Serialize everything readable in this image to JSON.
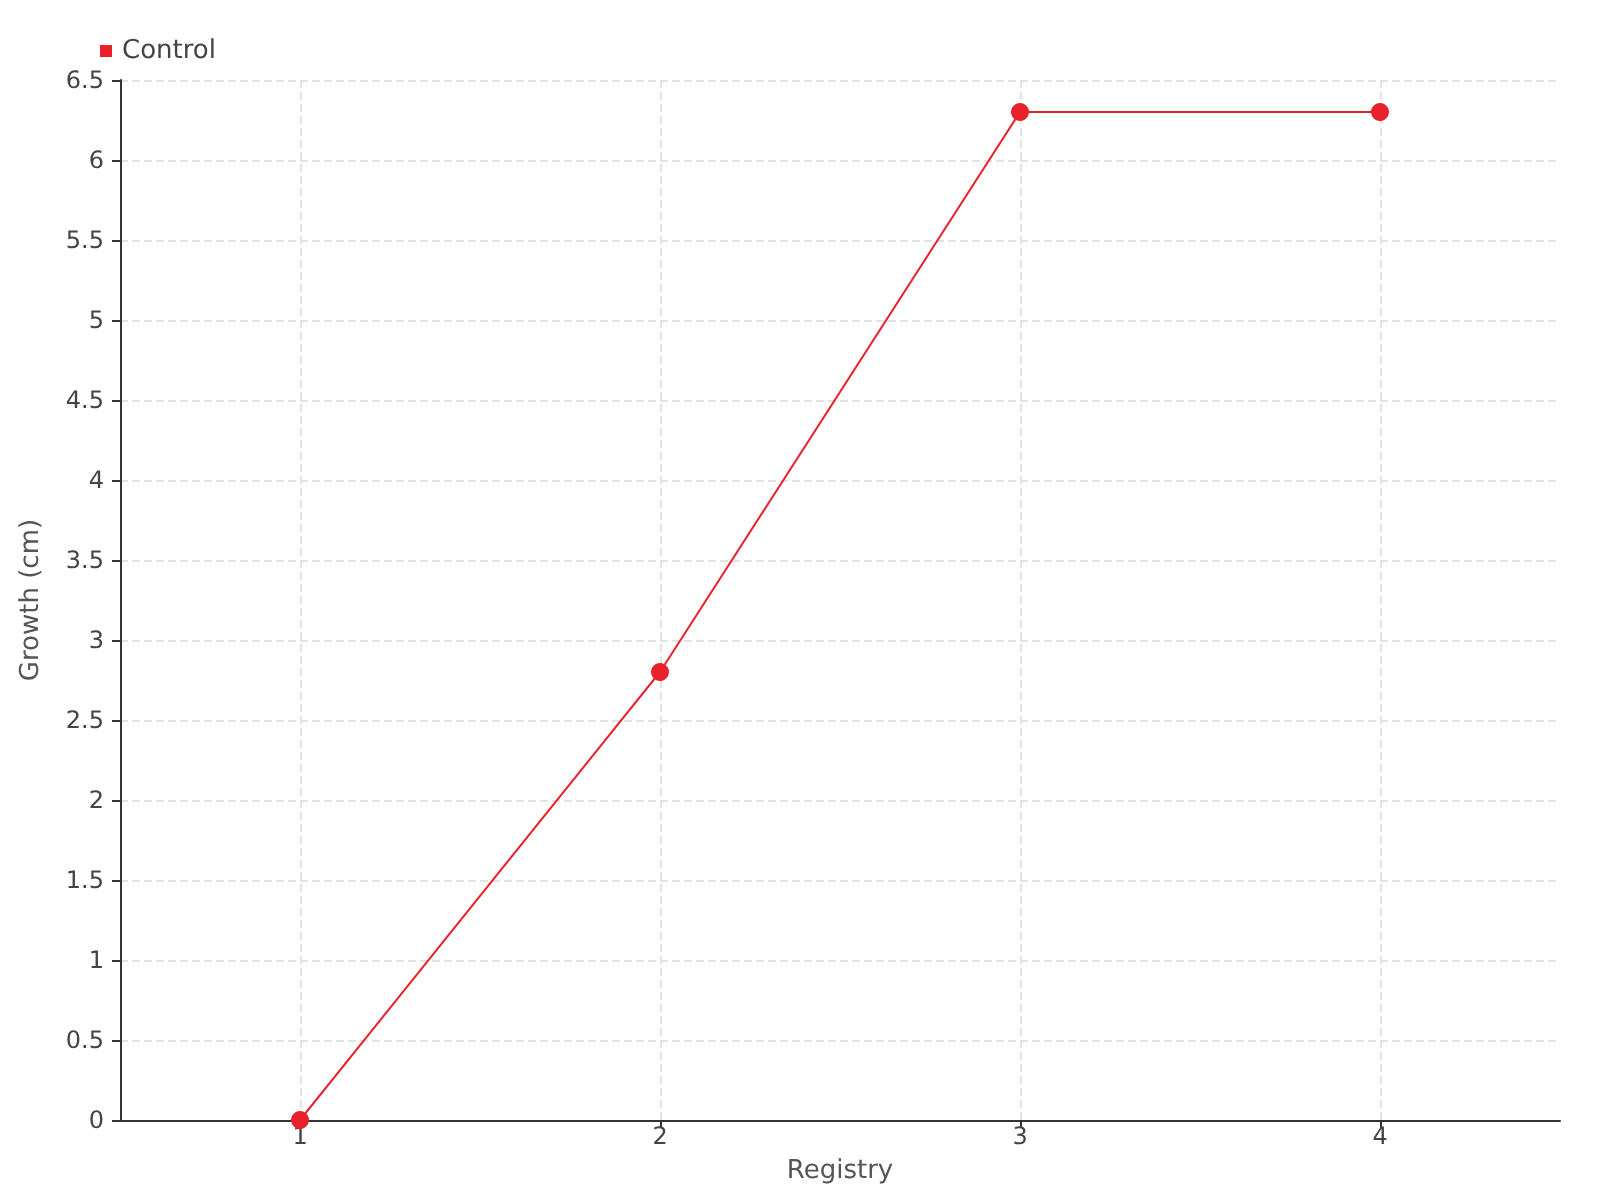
{
  "chart_data": {
    "type": "line",
    "xlabel": "Registry",
    "ylabel": "Growth (cm)",
    "x": [
      1,
      2,
      3,
      4
    ],
    "series": [
      {
        "name": "Control",
        "color": "#e8212b",
        "values": [
          0,
          2.8,
          6.3,
          6.3
        ]
      }
    ],
    "xlim": [
      0.5,
      4.5
    ],
    "xticks": [
      1,
      2,
      3,
      4
    ],
    "ylim": [
      0,
      6.5
    ],
    "yticks": [
      0,
      0.5,
      1,
      1.5,
      2,
      2.5,
      3,
      3.5,
      4,
      4.5,
      5,
      5.5,
      6,
      6.5
    ],
    "grid": true,
    "legend": "top left",
    "marker": "circle",
    "line_style": "solid"
  }
}
